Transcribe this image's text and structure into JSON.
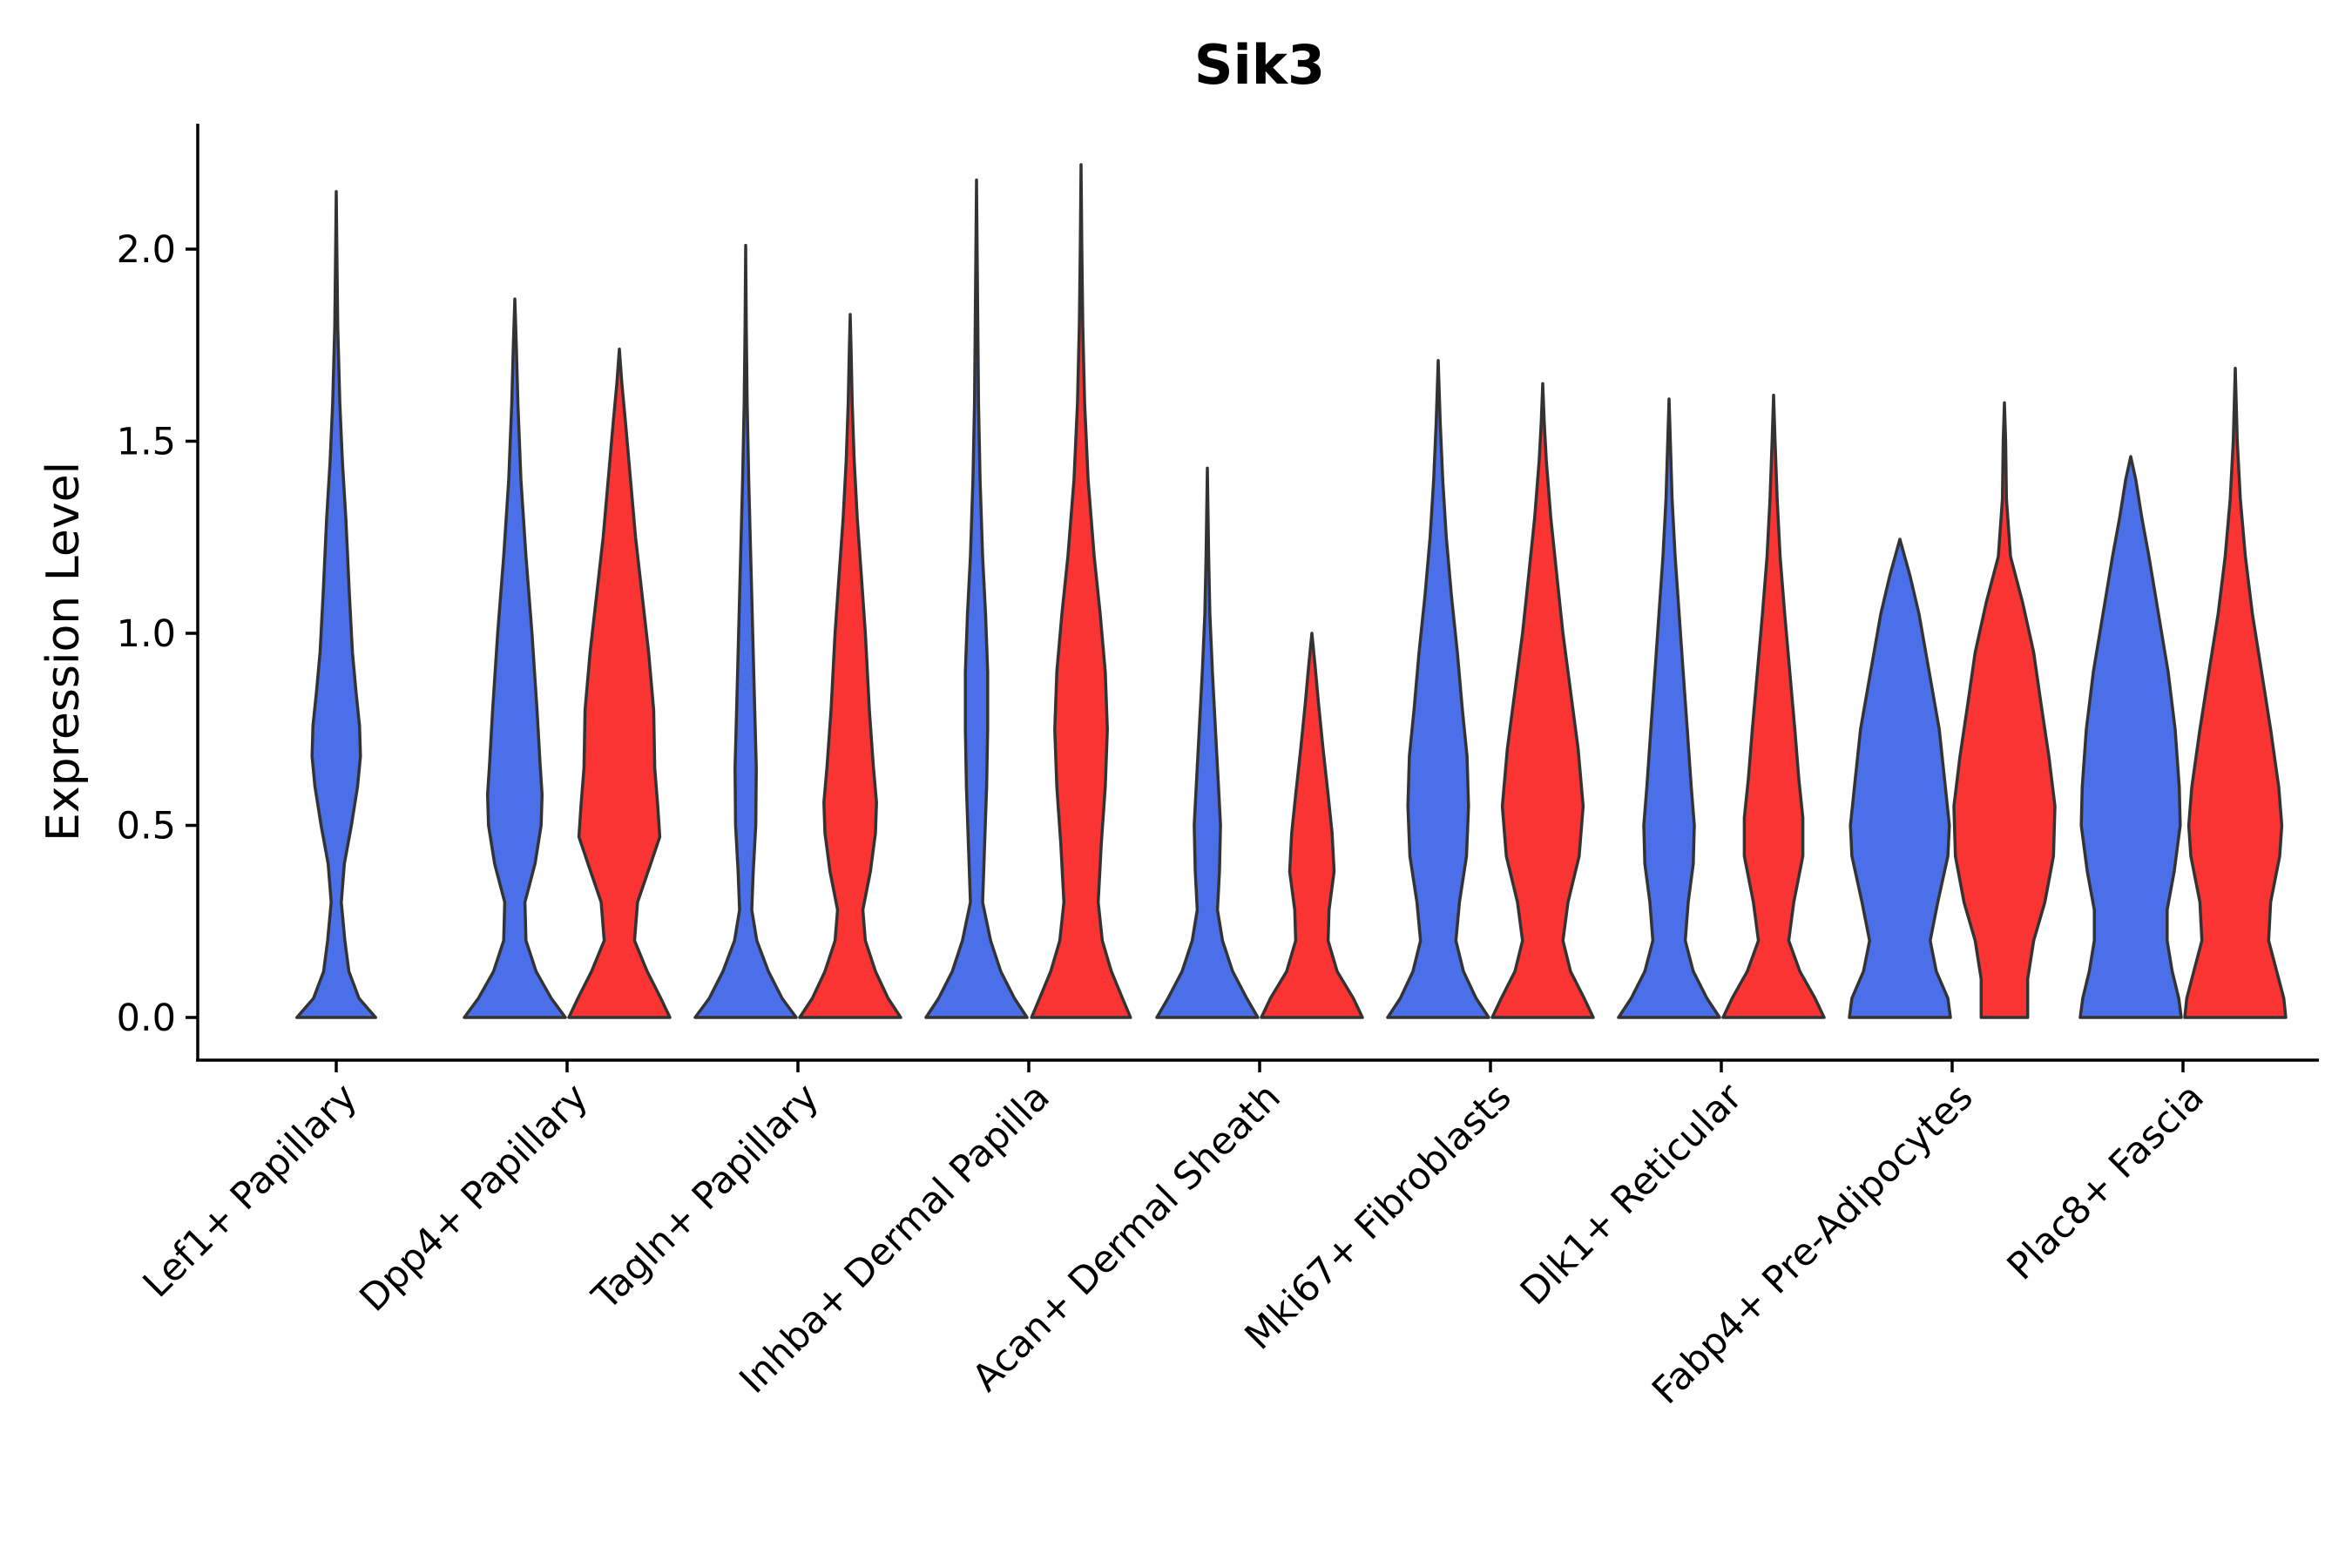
{
  "chart_data": {
    "type": "violin",
    "title": "Sik3",
    "xlabel": "",
    "ylabel": "Expression Level",
    "ylim": [
      -0.11,
      2.33
    ],
    "yticks": [
      0.0,
      0.5,
      1.0,
      1.5,
      2.0
    ],
    "ytick_labels": [
      "0.0",
      "0.5",
      "1.0",
      "1.5",
      "2.0"
    ],
    "categories": [
      "Lef1+ Papillary",
      "Dpp4+ Papillary",
      "Tagln+ Papillary",
      "Inhba+ Dermal Papilla",
      "Acan+ Dermal Sheath",
      "Mki67+ Fibroblasts",
      "Dlk1+ Reticular",
      "Fabp4+ Pre-Adipocytes",
      "Plac8+ Fascia"
    ],
    "colors": {
      "blue": "#4a6fe8",
      "red": "#fa3333"
    },
    "violins": [
      {
        "category": "Lef1+ Papillary",
        "group": "blue",
        "max": 2.15,
        "profile": [
          [
            0.0,
            0.78
          ],
          [
            0.05,
            0.45
          ],
          [
            0.12,
            0.25
          ],
          [
            0.2,
            0.17
          ],
          [
            0.3,
            0.1
          ],
          [
            0.4,
            0.16
          ],
          [
            0.5,
            0.3
          ],
          [
            0.6,
            0.42
          ],
          [
            0.68,
            0.48
          ],
          [
            0.76,
            0.46
          ],
          [
            0.85,
            0.39
          ],
          [
            0.95,
            0.32
          ],
          [
            1.1,
            0.26
          ],
          [
            1.3,
            0.19
          ],
          [
            1.45,
            0.12
          ],
          [
            1.6,
            0.07
          ],
          [
            1.8,
            0.03
          ],
          [
            2.0,
            0.012
          ],
          [
            2.15,
            0.0
          ]
        ]
      },
      {
        "category": "Dpp4+ Papillary",
        "group": "blue",
        "max": 1.87,
        "profile": [
          [
            0.0,
            1.0
          ],
          [
            0.05,
            0.72
          ],
          [
            0.12,
            0.42
          ],
          [
            0.2,
            0.22
          ],
          [
            0.3,
            0.2
          ],
          [
            0.4,
            0.4
          ],
          [
            0.5,
            0.52
          ],
          [
            0.58,
            0.54
          ],
          [
            0.66,
            0.5
          ],
          [
            0.8,
            0.44
          ],
          [
            1.0,
            0.34
          ],
          [
            1.2,
            0.22
          ],
          [
            1.4,
            0.12
          ],
          [
            1.6,
            0.06
          ],
          [
            1.75,
            0.03
          ],
          [
            1.87,
            0.0
          ]
        ]
      },
      {
        "category": "Dpp4+ Papillary",
        "group": "red",
        "max": 1.74,
        "profile": [
          [
            0.0,
            1.0
          ],
          [
            0.05,
            0.82
          ],
          [
            0.12,
            0.55
          ],
          [
            0.2,
            0.3
          ],
          [
            0.3,
            0.36
          ],
          [
            0.4,
            0.62
          ],
          [
            0.47,
            0.8
          ],
          [
            0.55,
            0.76
          ],
          [
            0.65,
            0.7
          ],
          [
            0.8,
            0.68
          ],
          [
            0.95,
            0.58
          ],
          [
            1.1,
            0.45
          ],
          [
            1.25,
            0.32
          ],
          [
            1.4,
            0.22
          ],
          [
            1.55,
            0.12
          ],
          [
            1.65,
            0.05
          ],
          [
            1.74,
            0.0
          ]
        ]
      },
      {
        "category": "Tagln+ Papillary",
        "group": "blue",
        "max": 2.01,
        "profile": [
          [
            0.0,
            1.0
          ],
          [
            0.05,
            0.72
          ],
          [
            0.12,
            0.45
          ],
          [
            0.2,
            0.22
          ],
          [
            0.28,
            0.12
          ],
          [
            0.38,
            0.15
          ],
          [
            0.5,
            0.2
          ],
          [
            0.65,
            0.21
          ],
          [
            0.8,
            0.18
          ],
          [
            1.0,
            0.14
          ],
          [
            1.2,
            0.1
          ],
          [
            1.4,
            0.06
          ],
          [
            1.6,
            0.03
          ],
          [
            1.8,
            0.012
          ],
          [
            2.01,
            0.0
          ]
        ]
      },
      {
        "category": "Tagln+ Papillary",
        "group": "red",
        "max": 1.83,
        "profile": [
          [
            0.0,
            1.0
          ],
          [
            0.05,
            0.75
          ],
          [
            0.12,
            0.5
          ],
          [
            0.2,
            0.3
          ],
          [
            0.28,
            0.25
          ],
          [
            0.38,
            0.4
          ],
          [
            0.48,
            0.5
          ],
          [
            0.56,
            0.52
          ],
          [
            0.65,
            0.46
          ],
          [
            0.8,
            0.38
          ],
          [
            1.0,
            0.3
          ],
          [
            1.15,
            0.22
          ],
          [
            1.3,
            0.14
          ],
          [
            1.45,
            0.08
          ],
          [
            1.6,
            0.04
          ],
          [
            1.75,
            0.015
          ],
          [
            1.83,
            0.0
          ]
        ]
      },
      {
        "category": "Inhba+ Dermal Papilla",
        "group": "blue",
        "max": 2.18,
        "profile": [
          [
            0.0,
            1.0
          ],
          [
            0.05,
            0.75
          ],
          [
            0.12,
            0.48
          ],
          [
            0.2,
            0.28
          ],
          [
            0.3,
            0.12
          ],
          [
            0.45,
            0.16
          ],
          [
            0.6,
            0.2
          ],
          [
            0.75,
            0.22
          ],
          [
            0.9,
            0.22
          ],
          [
            1.05,
            0.18
          ],
          [
            1.2,
            0.12
          ],
          [
            1.4,
            0.07
          ],
          [
            1.6,
            0.04
          ],
          [
            1.8,
            0.025
          ],
          [
            2.0,
            0.012
          ],
          [
            2.18,
            0.0
          ]
        ]
      },
      {
        "category": "Inhba+ Dermal Papilla",
        "group": "red",
        "max": 2.22,
        "profile": [
          [
            0.0,
            0.98
          ],
          [
            0.05,
            0.82
          ],
          [
            0.12,
            0.6
          ],
          [
            0.2,
            0.42
          ],
          [
            0.3,
            0.34
          ],
          [
            0.45,
            0.4
          ],
          [
            0.6,
            0.48
          ],
          [
            0.75,
            0.52
          ],
          [
            0.9,
            0.48
          ],
          [
            1.05,
            0.38
          ],
          [
            1.2,
            0.26
          ],
          [
            1.4,
            0.14
          ],
          [
            1.6,
            0.07
          ],
          [
            1.8,
            0.035
          ],
          [
            2.0,
            0.015
          ],
          [
            2.22,
            0.0
          ]
        ]
      },
      {
        "category": "Acan+ Dermal Sheath",
        "group": "blue",
        "max": 1.43,
        "profile": [
          [
            0.0,
            1.0
          ],
          [
            0.05,
            0.78
          ],
          [
            0.12,
            0.5
          ],
          [
            0.2,
            0.3
          ],
          [
            0.28,
            0.2
          ],
          [
            0.38,
            0.24
          ],
          [
            0.5,
            0.26
          ],
          [
            0.6,
            0.22
          ],
          [
            0.75,
            0.16
          ],
          [
            0.9,
            0.1
          ],
          [
            1.05,
            0.05
          ],
          [
            1.2,
            0.025
          ],
          [
            1.43,
            0.0
          ]
        ]
      },
      {
        "category": "Acan+ Dermal Sheath",
        "group": "red",
        "max": 1.0,
        "profile": [
          [
            0.0,
            1.0
          ],
          [
            0.05,
            0.82
          ],
          [
            0.12,
            0.5
          ],
          [
            0.2,
            0.32
          ],
          [
            0.28,
            0.34
          ],
          [
            0.38,
            0.44
          ],
          [
            0.48,
            0.4
          ],
          [
            0.58,
            0.32
          ],
          [
            0.7,
            0.22
          ],
          [
            0.82,
            0.13
          ],
          [
            0.92,
            0.06
          ],
          [
            1.0,
            0.0
          ]
        ]
      },
      {
        "category": "Mki67+ Fibroblasts",
        "group": "blue",
        "max": 1.71,
        "profile": [
          [
            0.0,
            1.0
          ],
          [
            0.05,
            0.75
          ],
          [
            0.12,
            0.5
          ],
          [
            0.2,
            0.35
          ],
          [
            0.3,
            0.42
          ],
          [
            0.42,
            0.56
          ],
          [
            0.55,
            0.6
          ],
          [
            0.68,
            0.57
          ],
          [
            0.8,
            0.48
          ],
          [
            0.95,
            0.38
          ],
          [
            1.1,
            0.26
          ],
          [
            1.25,
            0.16
          ],
          [
            1.4,
            0.09
          ],
          [
            1.55,
            0.04
          ],
          [
            1.71,
            0.0
          ]
        ]
      },
      {
        "category": "Mki67+ Fibroblasts",
        "group": "red",
        "max": 1.65,
        "profile": [
          [
            0.0,
            1.0
          ],
          [
            0.05,
            0.82
          ],
          [
            0.12,
            0.55
          ],
          [
            0.2,
            0.4
          ],
          [
            0.3,
            0.5
          ],
          [
            0.42,
            0.72
          ],
          [
            0.55,
            0.8
          ],
          [
            0.7,
            0.7
          ],
          [
            0.85,
            0.55
          ],
          [
            1.0,
            0.4
          ],
          [
            1.15,
            0.28
          ],
          [
            1.3,
            0.16
          ],
          [
            1.45,
            0.07
          ],
          [
            1.55,
            0.03
          ],
          [
            1.65,
            0.0
          ]
        ]
      },
      {
        "category": "Dlk1+ Reticular",
        "group": "blue",
        "max": 1.61,
        "profile": [
          [
            0.0,
            1.0
          ],
          [
            0.05,
            0.75
          ],
          [
            0.12,
            0.48
          ],
          [
            0.2,
            0.32
          ],
          [
            0.3,
            0.38
          ],
          [
            0.4,
            0.48
          ],
          [
            0.5,
            0.5
          ],
          [
            0.6,
            0.44
          ],
          [
            0.75,
            0.36
          ],
          [
            0.9,
            0.28
          ],
          [
            1.05,
            0.2
          ],
          [
            1.2,
            0.12
          ],
          [
            1.35,
            0.06
          ],
          [
            1.5,
            0.025
          ],
          [
            1.61,
            0.0
          ]
        ]
      },
      {
        "category": "Dlk1+ Reticular",
        "group": "red",
        "max": 1.62,
        "profile": [
          [
            0.0,
            1.0
          ],
          [
            0.05,
            0.82
          ],
          [
            0.12,
            0.52
          ],
          [
            0.2,
            0.3
          ],
          [
            0.3,
            0.4
          ],
          [
            0.42,
            0.58
          ],
          [
            0.52,
            0.58
          ],
          [
            0.62,
            0.5
          ],
          [
            0.75,
            0.42
          ],
          [
            0.9,
            0.32
          ],
          [
            1.05,
            0.22
          ],
          [
            1.2,
            0.13
          ],
          [
            1.35,
            0.07
          ],
          [
            1.5,
            0.03
          ],
          [
            1.62,
            0.0
          ]
        ]
      },
      {
        "category": "Fabp4+ Pre-Adipocytes",
        "group": "blue",
        "max": 1.245,
        "profile": [
          [
            0.0,
            1.0
          ],
          [
            0.05,
            0.95
          ],
          [
            0.12,
            0.72
          ],
          [
            0.2,
            0.6
          ],
          [
            0.3,
            0.75
          ],
          [
            0.42,
            0.95
          ],
          [
            0.5,
            0.98
          ],
          [
            0.6,
            0.9
          ],
          [
            0.75,
            0.78
          ],
          [
            0.9,
            0.58
          ],
          [
            1.05,
            0.38
          ],
          [
            1.15,
            0.2
          ],
          [
            1.245,
            0.0
          ]
        ]
      },
      {
        "category": "Fabp4+ Pre-Adipocytes",
        "group": "red",
        "max": 1.6,
        "profile": [
          [
            0.0,
            0.46
          ],
          [
            0.1,
            0.46
          ],
          [
            0.2,
            0.58
          ],
          [
            0.3,
            0.8
          ],
          [
            0.42,
            0.97
          ],
          [
            0.55,
            1.0
          ],
          [
            0.68,
            0.88
          ],
          [
            0.82,
            0.72
          ],
          [
            0.95,
            0.58
          ],
          [
            1.08,
            0.36
          ],
          [
            1.2,
            0.12
          ],
          [
            1.35,
            0.04
          ],
          [
            1.5,
            0.025
          ],
          [
            1.6,
            0.0
          ]
        ]
      },
      {
        "category": "Plac8+ Fascia",
        "group": "blue",
        "max": 1.46,
        "profile": [
          [
            0.0,
            1.0
          ],
          [
            0.05,
            0.95
          ],
          [
            0.12,
            0.82
          ],
          [
            0.2,
            0.72
          ],
          [
            0.28,
            0.72
          ],
          [
            0.38,
            0.86
          ],
          [
            0.5,
            0.98
          ],
          [
            0.6,
            0.96
          ],
          [
            0.75,
            0.88
          ],
          [
            0.9,
            0.74
          ],
          [
            1.05,
            0.55
          ],
          [
            1.2,
            0.36
          ],
          [
            1.3,
            0.22
          ],
          [
            1.4,
            0.1
          ],
          [
            1.46,
            0.0
          ]
        ]
      },
      {
        "category": "Plac8+ Fascia",
        "group": "red",
        "max": 1.69,
        "profile": [
          [
            0.0,
            1.0
          ],
          [
            0.05,
            0.96
          ],
          [
            0.12,
            0.82
          ],
          [
            0.2,
            0.66
          ],
          [
            0.3,
            0.7
          ],
          [
            0.42,
            0.88
          ],
          [
            0.5,
            0.92
          ],
          [
            0.6,
            0.86
          ],
          [
            0.75,
            0.7
          ],
          [
            0.9,
            0.52
          ],
          [
            1.05,
            0.34
          ],
          [
            1.2,
            0.2
          ],
          [
            1.35,
            0.1
          ],
          [
            1.5,
            0.04
          ],
          [
            1.69,
            0.0
          ]
        ]
      }
    ],
    "legend": "none",
    "grid": false
  }
}
